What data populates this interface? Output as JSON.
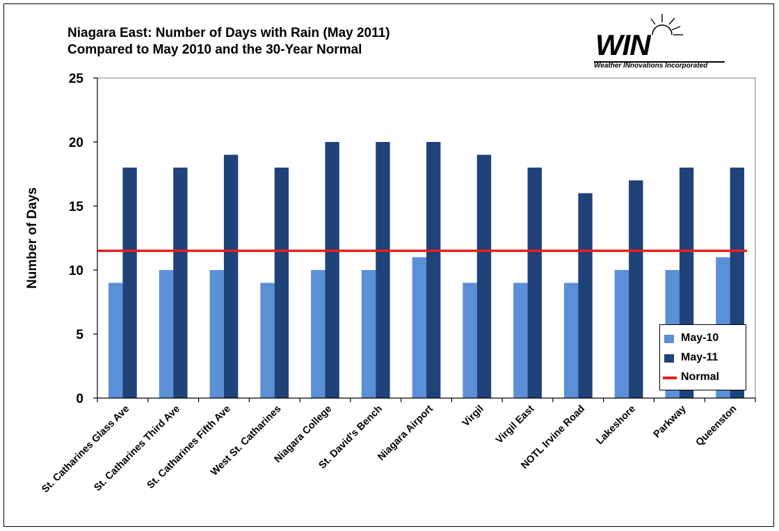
{
  "title_lines": [
    "Niagara East: Number of Days with Rain (May 2011)",
    "Compared to May 2010 and the 30-Year Normal"
  ],
  "logo": {
    "text": "WIN",
    "subtitle": "Weather INnovations Incorporated",
    "icon": "sun-icon"
  },
  "legend": {
    "may10": "May-10",
    "may11": "May-11",
    "normal": "Normal"
  },
  "colors": {
    "may10": "#5b8fd6",
    "may11": "#1f4278",
    "normal": "#e8201c",
    "axis": "#000000",
    "plot_border": "#808080"
  },
  "chart_data": {
    "type": "bar",
    "ylabel": "Number of Days",
    "xlabel": "",
    "ylim": [
      0,
      25
    ],
    "yticks": [
      0,
      5,
      10,
      15,
      20,
      25
    ],
    "grid": false,
    "legend_position": "bottom-right",
    "categories": [
      "St. Catharines Glass Ave",
      "St. Catharines Third Ave",
      "St. Catharines Fifth Ave",
      "West St. Catharines",
      "Niagara College",
      "St. David's Bench",
      "Niagara Airport",
      "Virgil",
      "Virgil East",
      "NOTL Irvine Road",
      "Lakeshore",
      "Parkway",
      "Queenston"
    ],
    "series": [
      {
        "name": "May-10",
        "values": [
          9,
          10,
          10,
          9,
          10,
          10,
          11,
          9,
          9,
          9,
          10,
          10,
          11
        ]
      },
      {
        "name": "May-11",
        "values": [
          18,
          18,
          19,
          18,
          20,
          20,
          20,
          19,
          18,
          16,
          17,
          18,
          18
        ]
      }
    ],
    "reference_line": {
      "name": "Normal",
      "value": 11.5
    }
  }
}
